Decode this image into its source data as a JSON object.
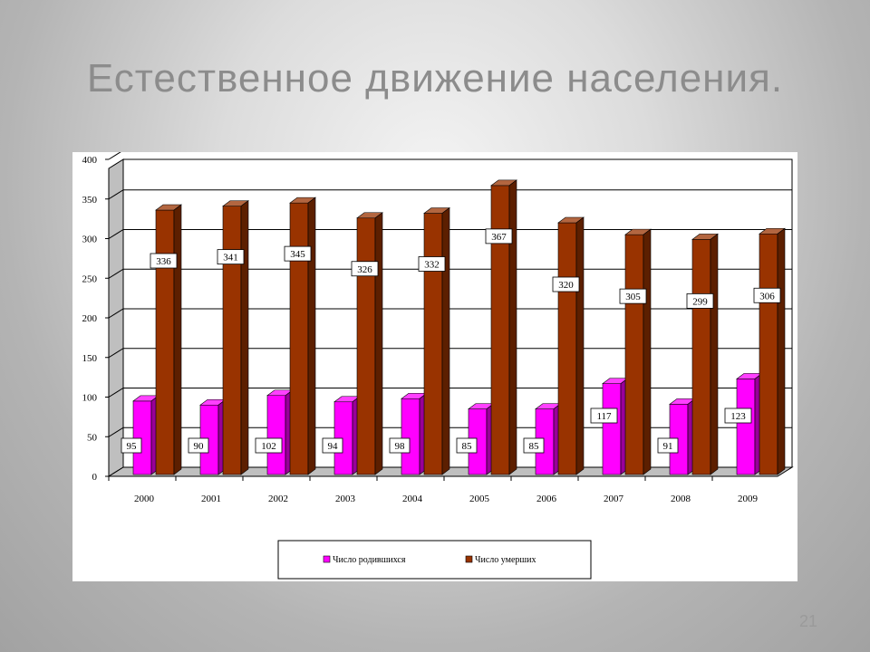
{
  "slide": {
    "title": "Естественное движение населения.",
    "page_number": "21"
  },
  "colors": {
    "births": "#ff00ff",
    "deaths": "#993300"
  },
  "chart_data": {
    "type": "bar",
    "title": "",
    "xlabel": "",
    "ylabel": "",
    "ylim": [
      0,
      400
    ],
    "yticks": [
      0,
      50,
      100,
      150,
      200,
      250,
      300,
      350,
      400
    ],
    "grid": true,
    "legend_position": "bottom",
    "categories": [
      "2000",
      "2001",
      "2002",
      "2003",
      "2004",
      "2005",
      "2006",
      "2007",
      "2008",
      "2009"
    ],
    "series": [
      {
        "name": "Число родившихся",
        "values": [
          95,
          90,
          102,
          94,
          98,
          85,
          85,
          117,
          91,
          123
        ]
      },
      {
        "name": "Число умерших",
        "values": [
          336,
          341,
          345,
          326,
          332,
          367,
          320,
          305,
          299,
          306
        ]
      }
    ]
  }
}
